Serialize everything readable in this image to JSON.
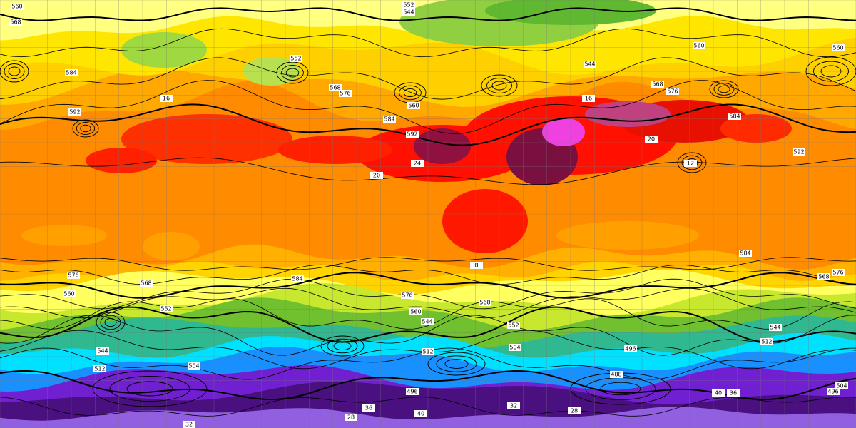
{
  "map": {
    "contour_labels": [
      "560",
      "552",
      "544",
      "568",
      "584",
      "592",
      "552",
      "568",
      "576",
      "560",
      "584",
      "592",
      "560",
      "544",
      "568",
      "576",
      "584",
      "592",
      "560",
      "584",
      "576",
      "568",
      "576",
      "568",
      "560",
      "552",
      "584",
      "576",
      "568",
      "560",
      "544",
      "552",
      "544",
      "512",
      "496",
      "504",
      "512",
      "544",
      "504",
      "512",
      "488",
      "496",
      "504",
      "496"
    ],
    "temperature_labels": [
      "16",
      "20",
      "24",
      "16",
      "20",
      "28",
      "36",
      "40",
      "32",
      "28",
      "40",
      "36",
      "32",
      "12",
      "8"
    ]
  }
}
